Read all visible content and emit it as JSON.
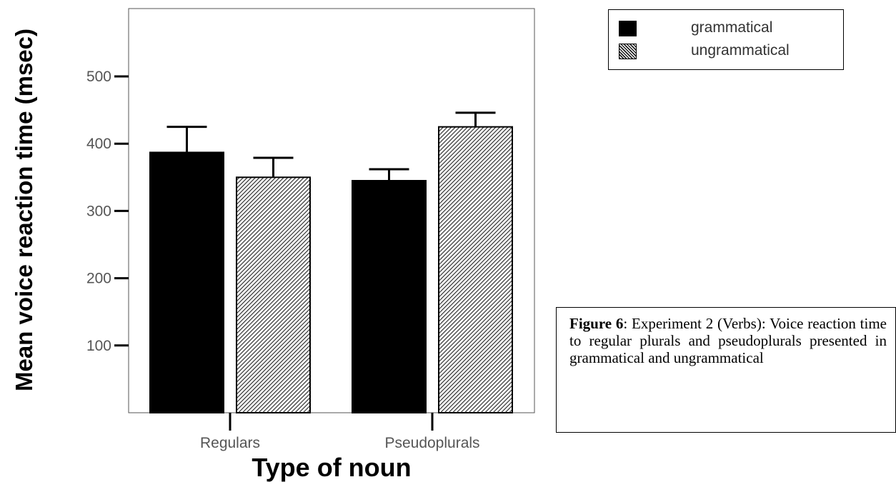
{
  "chart_data": {
    "type": "bar",
    "xlabel": "Type of noun",
    "ylabel": "Mean voice reaction time (msec)",
    "categories": [
      "Regulars",
      "Pseudoplurals"
    ],
    "series": [
      {
        "name": "grammatical",
        "values": [
          387,
          345
        ],
        "error_upper": [
          425,
          362
        ],
        "color": "#000000",
        "pattern": "solid"
      },
      {
        "name": "ungrammatical",
        "values": [
          350,
          425
        ],
        "error_upper": [
          379,
          446
        ],
        "color": "#555555",
        "pattern": "diagonal-hatch"
      }
    ],
    "yticks": [
      100,
      200,
      300,
      400,
      500
    ],
    "ylim": [
      0,
      600
    ],
    "grid": false,
    "legend_position": "top-right",
    "error_bars": true
  },
  "caption": {
    "label": "Figure 6",
    "text": ": Experiment 2 (Verbs): Voice reaction time to regular plurals and pseudoplurals presented in grammatical and ungrammatical"
  }
}
